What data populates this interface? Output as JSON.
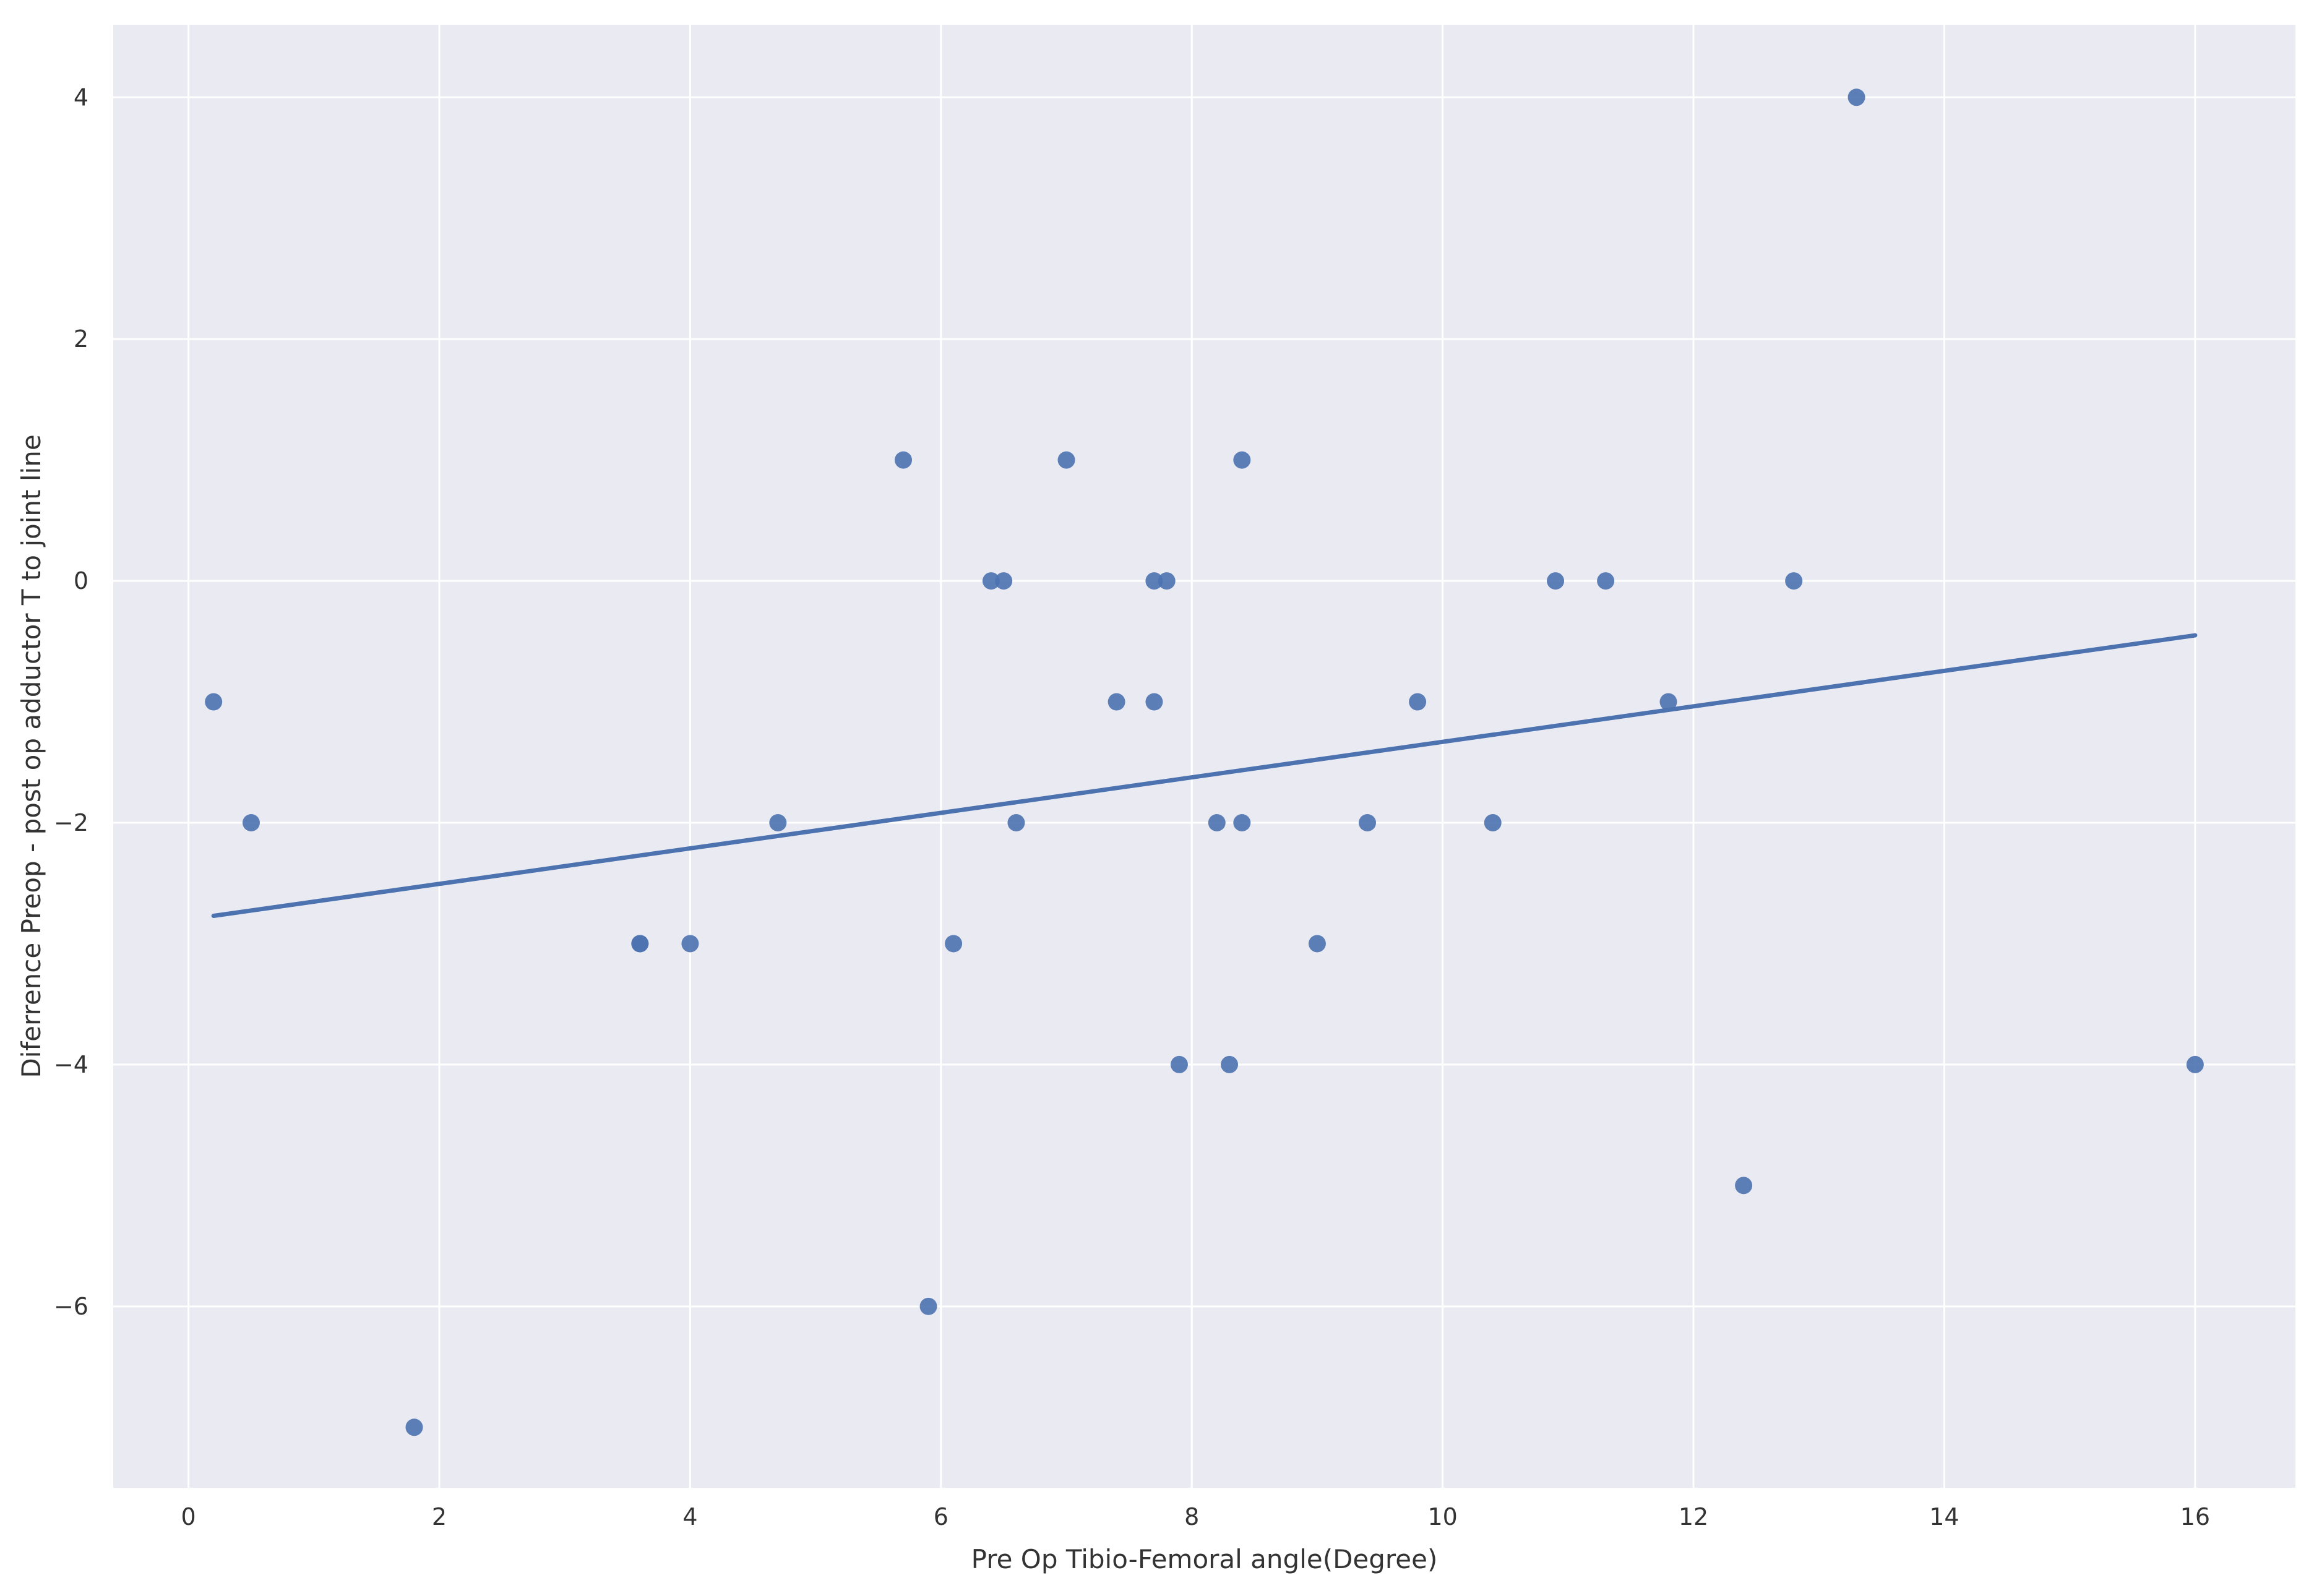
{
  "chart_data": {
    "type": "scatter",
    "title": "",
    "xlabel": "Pre Op Tibio-Femoral angle(Degree)",
    "ylabel": "Diferrence Preop - post op adductor T to joint line",
    "xlim": [
      -0.6,
      16.8
    ],
    "ylim": [
      -7.5,
      4.6
    ],
    "xticks": [
      0,
      2,
      4,
      6,
      8,
      10,
      12,
      14,
      16
    ],
    "yticks": [
      4,
      2,
      0,
      -2,
      -4,
      -6
    ],
    "grid": true,
    "legend": "none",
    "colors": {
      "background": "#eaeaf2",
      "grid": "#ffffff",
      "marker": "#4c72b0"
    },
    "points": [
      {
        "x": 0.2,
        "y": -1
      },
      {
        "x": 0.5,
        "y": -2
      },
      {
        "x": 1.8,
        "y": -7
      },
      {
        "x": 3.6,
        "y": -3
      },
      {
        "x": 3.6,
        "y": -3
      },
      {
        "x": 4.0,
        "y": -3
      },
      {
        "x": 4.7,
        "y": -2
      },
      {
        "x": 5.7,
        "y": 1
      },
      {
        "x": 5.9,
        "y": -6
      },
      {
        "x": 6.1,
        "y": -3
      },
      {
        "x": 6.4,
        "y": 0
      },
      {
        "x": 6.5,
        "y": 0
      },
      {
        "x": 6.6,
        "y": -2
      },
      {
        "x": 7.0,
        "y": 1
      },
      {
        "x": 7.4,
        "y": -1
      },
      {
        "x": 7.7,
        "y": 0
      },
      {
        "x": 7.7,
        "y": -1
      },
      {
        "x": 7.8,
        "y": 0
      },
      {
        "x": 7.9,
        "y": -4
      },
      {
        "x": 8.2,
        "y": -2
      },
      {
        "x": 8.3,
        "y": -4
      },
      {
        "x": 8.4,
        "y": 1
      },
      {
        "x": 8.4,
        "y": -2
      },
      {
        "x": 9.0,
        "y": -3
      },
      {
        "x": 9.4,
        "y": -2
      },
      {
        "x": 9.8,
        "y": -1
      },
      {
        "x": 10.4,
        "y": -2
      },
      {
        "x": 10.9,
        "y": 0
      },
      {
        "x": 11.3,
        "y": 0
      },
      {
        "x": 11.8,
        "y": -1
      },
      {
        "x": 12.4,
        "y": -5
      },
      {
        "x": 12.8,
        "y": 0
      },
      {
        "x": 13.3,
        "y": 4
      },
      {
        "x": 16.0,
        "y": -4
      }
    ],
    "regression_line": {
      "x": [
        0.2,
        16.0
      ],
      "y": [
        -2.77,
        -0.45
      ]
    }
  }
}
